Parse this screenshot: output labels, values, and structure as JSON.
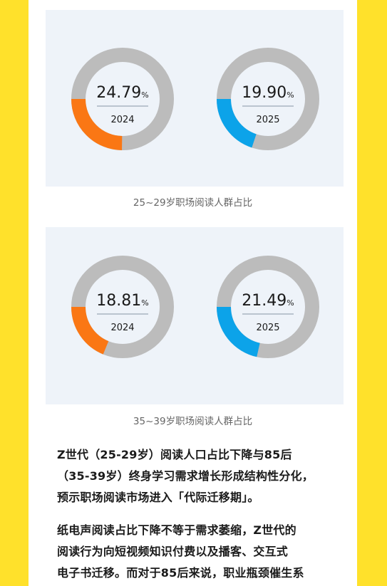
{
  "theme": {
    "side_bar_color": "#ffe12b",
    "panel_bg": "#eef3f9",
    "ring_track": "#bcbcbc",
    "orange": "#fa7714",
    "blue": "#0ca3e9"
  },
  "chart_data": [
    {
      "type": "pie",
      "caption": "25~29岁职场阅读人群占比",
      "items": [
        {
          "value_label": "24.79",
          "unit": "%",
          "year": "2024",
          "value": 24.79,
          "color": "#fa7714"
        },
        {
          "value_label": "19.90",
          "unit": "%",
          "year": "2025",
          "value": 19.9,
          "color": "#0ca3e9"
        }
      ]
    },
    {
      "type": "pie",
      "caption": "35~39岁职场阅读人群占比",
      "items": [
        {
          "value_label": "18.81",
          "unit": "%",
          "year": "2024",
          "value": 18.81,
          "color": "#fa7714"
        },
        {
          "value_label": "21.49",
          "unit": "%",
          "year": "2025",
          "value": 21.49,
          "color": "#0ca3e9"
        }
      ]
    }
  ],
  "paragraphs": [
    [
      "Z世代（25-29岁）阅读人口占比下降与85后",
      "（35-39岁）终身学习需求增长形成结构性分化，",
      "预示职场阅读市场进入「代际迁移期」。"
    ],
    [
      "纸电声阅读占比下降不等于需求萎缩，Z世代的",
      "阅读行为向短视频知识付费以及播客、交互式",
      "电子书迁移。而对于85后来说，职业瓶颈催生系"
    ]
  ]
}
